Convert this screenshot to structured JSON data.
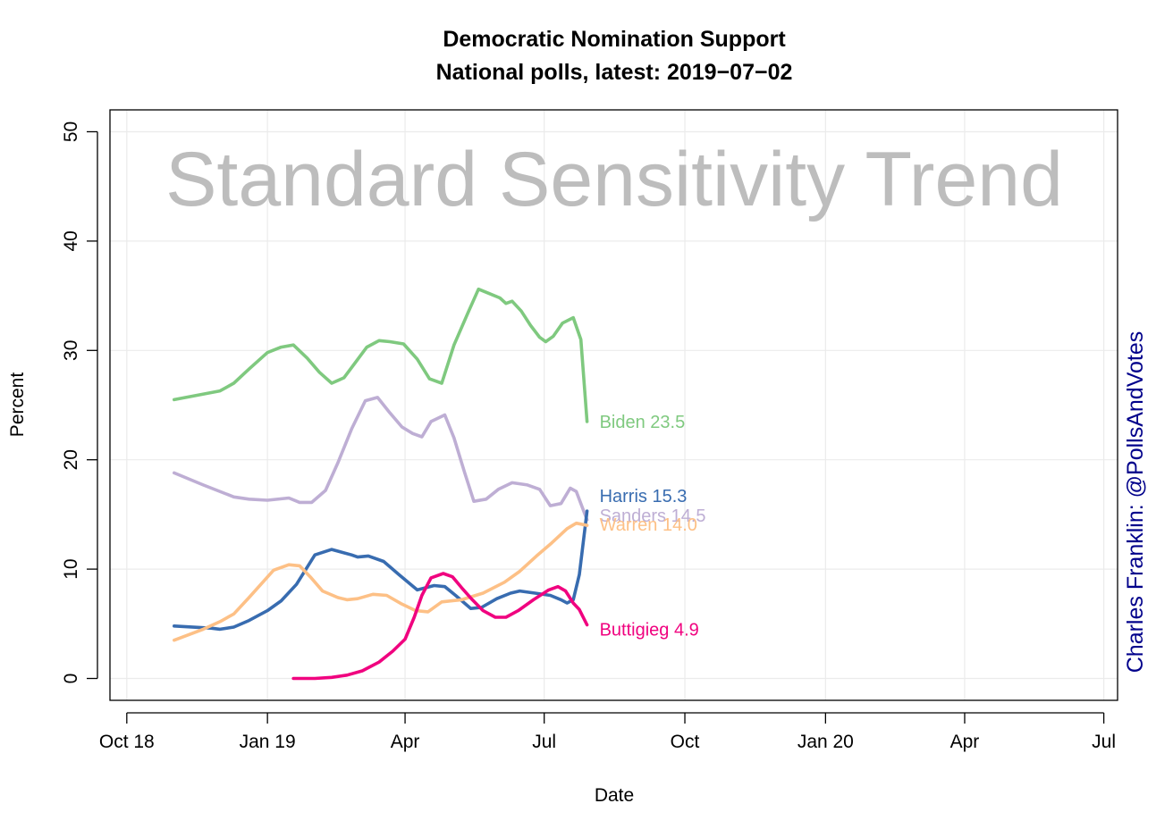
{
  "chart_data": {
    "type": "line",
    "title": "Democratic Nomination Support",
    "subtitle": "National polls, latest: 2019−07−02",
    "xlabel": "Date",
    "ylabel": "Percent",
    "watermark": "Standard Sensitivity Trend",
    "credit": "Charles Franklin: @PollsAndVotes",
    "xlim": [
      "2018-09-20",
      "2020-07-10"
    ],
    "ylim": [
      -2,
      52
    ],
    "x_ticks": [
      {
        "date": "2018-10-01",
        "label": "Oct 18"
      },
      {
        "date": "2019-01-01",
        "label": "Jan 19"
      },
      {
        "date": "2019-04-01",
        "label": "Apr"
      },
      {
        "date": "2019-07-01",
        "label": "Jul"
      },
      {
        "date": "2019-10-01",
        "label": "Oct"
      },
      {
        "date": "2020-01-01",
        "label": "Jan 20"
      },
      {
        "date": "2020-04-01",
        "label": "Apr"
      },
      {
        "date": "2020-07-01",
        "label": "Jul"
      }
    ],
    "y_ticks": [
      0,
      10,
      20,
      30,
      40,
      50
    ],
    "grid": true,
    "series": [
      {
        "name": "Biden",
        "end_label": "Biden 23.5",
        "color": "#7fc97f",
        "points": [
          [
            "2018-11-01",
            25.5
          ],
          [
            "2018-12-01",
            26.3
          ],
          [
            "2018-12-10",
            27.0
          ],
          [
            "2018-12-20",
            28.3
          ],
          [
            "2019-01-01",
            29.8
          ],
          [
            "2019-01-10",
            30.3
          ],
          [
            "2019-01-18",
            30.5
          ],
          [
            "2019-01-27",
            29.3
          ],
          [
            "2019-02-04",
            28.0
          ],
          [
            "2019-02-12",
            27.0
          ],
          [
            "2019-02-20",
            27.5
          ],
          [
            "2019-02-27",
            28.8
          ],
          [
            "2019-03-07",
            30.3
          ],
          [
            "2019-03-15",
            30.9
          ],
          [
            "2019-03-22",
            30.8
          ],
          [
            "2019-03-31",
            30.6
          ],
          [
            "2019-04-09",
            29.2
          ],
          [
            "2019-04-17",
            27.4
          ],
          [
            "2019-04-25",
            27.0
          ],
          [
            "2019-05-03",
            30.5
          ],
          [
            "2019-05-12",
            33.4
          ],
          [
            "2019-05-19",
            35.6
          ],
          [
            "2019-05-26",
            35.2
          ],
          [
            "2019-06-02",
            34.8
          ],
          [
            "2019-06-06",
            34.3
          ],
          [
            "2019-06-10",
            34.5
          ],
          [
            "2019-06-16",
            33.6
          ],
          [
            "2019-06-22",
            32.3
          ],
          [
            "2019-06-28",
            31.2
          ],
          [
            "2019-07-02",
            30.8
          ],
          [
            "2019-07-07",
            31.3
          ],
          [
            "2019-07-13",
            32.5
          ],
          [
            "2019-07-20",
            33.0
          ],
          [
            "2019-07-25",
            31.0
          ],
          [
            "2019-07-29",
            23.5
          ]
        ]
      },
      {
        "name": "Sanders",
        "end_label": "Sanders 14.5",
        "color": "#beaed4",
        "points": [
          [
            "2018-11-01",
            18.8
          ],
          [
            "2018-11-20",
            17.7
          ],
          [
            "2018-12-10",
            16.6
          ],
          [
            "2018-12-20",
            16.4
          ],
          [
            "2019-01-01",
            16.3
          ],
          [
            "2019-01-15",
            16.5
          ],
          [
            "2019-01-22",
            16.1
          ],
          [
            "2019-01-30",
            16.1
          ],
          [
            "2019-02-08",
            17.2
          ],
          [
            "2019-02-16",
            19.7
          ],
          [
            "2019-02-25",
            22.8
          ],
          [
            "2019-03-06",
            25.4
          ],
          [
            "2019-03-14",
            25.7
          ],
          [
            "2019-03-22",
            24.3
          ],
          [
            "2019-03-30",
            23.0
          ],
          [
            "2019-04-06",
            22.4
          ],
          [
            "2019-04-12",
            22.1
          ],
          [
            "2019-04-18",
            23.5
          ],
          [
            "2019-04-27",
            24.1
          ],
          [
            "2019-05-03",
            22.0
          ],
          [
            "2019-05-10",
            18.8
          ],
          [
            "2019-05-16",
            16.2
          ],
          [
            "2019-05-24",
            16.4
          ],
          [
            "2019-06-01",
            17.3
          ],
          [
            "2019-06-10",
            17.9
          ],
          [
            "2019-06-20",
            17.7
          ],
          [
            "2019-06-28",
            17.3
          ],
          [
            "2019-07-05",
            15.8
          ],
          [
            "2019-07-12",
            16.0
          ],
          [
            "2019-07-18",
            17.4
          ],
          [
            "2019-07-22",
            17.1
          ],
          [
            "2019-07-29",
            14.5
          ]
        ]
      },
      {
        "name": "Harris",
        "end_label": "Harris 15.3",
        "color": "#386cb0",
        "points": [
          [
            "2018-11-01",
            4.8
          ],
          [
            "2018-11-25",
            4.6
          ],
          [
            "2018-12-01",
            4.5
          ],
          [
            "2018-12-10",
            4.7
          ],
          [
            "2018-12-20",
            5.3
          ],
          [
            "2019-01-01",
            6.2
          ],
          [
            "2019-01-10",
            7.1
          ],
          [
            "2019-01-20",
            8.6
          ],
          [
            "2019-02-01",
            11.3
          ],
          [
            "2019-02-12",
            11.8
          ],
          [
            "2019-02-25",
            11.3
          ],
          [
            "2019-03-01",
            11.1
          ],
          [
            "2019-03-08",
            11.2
          ],
          [
            "2019-03-18",
            10.7
          ],
          [
            "2019-03-28",
            9.5
          ],
          [
            "2019-04-09",
            8.1
          ],
          [
            "2019-04-20",
            8.5
          ],
          [
            "2019-04-27",
            8.4
          ],
          [
            "2019-05-04",
            7.6
          ],
          [
            "2019-05-14",
            6.4
          ],
          [
            "2019-05-21",
            6.5
          ],
          [
            "2019-05-31",
            7.3
          ],
          [
            "2019-06-09",
            7.8
          ],
          [
            "2019-06-15",
            8.0
          ],
          [
            "2019-06-25",
            7.8
          ],
          [
            "2019-07-05",
            7.6
          ],
          [
            "2019-07-12",
            7.2
          ],
          [
            "2019-07-16",
            6.9
          ],
          [
            "2019-07-20",
            7.2
          ],
          [
            "2019-07-24",
            9.5
          ],
          [
            "2019-07-29",
            15.3
          ]
        ]
      },
      {
        "name": "Warren",
        "end_label": "Warren 14.0",
        "color": "#fdc086",
        "points": [
          [
            "2018-11-01",
            3.5
          ],
          [
            "2018-11-20",
            4.5
          ],
          [
            "2018-12-01",
            5.2
          ],
          [
            "2018-12-10",
            5.9
          ],
          [
            "2018-12-20",
            7.4
          ],
          [
            "2019-01-05",
            9.9
          ],
          [
            "2019-01-15",
            10.4
          ],
          [
            "2019-01-22",
            10.3
          ],
          [
            "2019-01-29",
            9.3
          ],
          [
            "2019-02-06",
            8.0
          ],
          [
            "2019-02-16",
            7.4
          ],
          [
            "2019-02-22",
            7.2
          ],
          [
            "2019-03-01",
            7.3
          ],
          [
            "2019-03-11",
            7.7
          ],
          [
            "2019-03-20",
            7.6
          ],
          [
            "2019-03-30",
            6.8
          ],
          [
            "2019-04-08",
            6.2
          ],
          [
            "2019-04-16",
            6.1
          ],
          [
            "2019-04-25",
            7.0
          ],
          [
            "2019-05-08",
            7.2
          ],
          [
            "2019-05-22",
            7.8
          ],
          [
            "2019-06-05",
            8.8
          ],
          [
            "2019-06-15",
            9.8
          ],
          [
            "2019-06-26",
            11.2
          ],
          [
            "2019-07-06",
            12.4
          ],
          [
            "2019-07-16",
            13.7
          ],
          [
            "2019-07-22",
            14.2
          ],
          [
            "2019-07-29",
            14.0
          ]
        ]
      },
      {
        "name": "Buttigieg",
        "end_label": "Buttigieg 4.9",
        "color": "#f0027f",
        "points": [
          [
            "2019-01-18",
            0.0
          ],
          [
            "2019-02-01",
            0.0
          ],
          [
            "2019-02-12",
            0.1
          ],
          [
            "2019-02-22",
            0.3
          ],
          [
            "2019-03-04",
            0.7
          ],
          [
            "2019-03-15",
            1.5
          ],
          [
            "2019-03-24",
            2.5
          ],
          [
            "2019-04-01",
            3.6
          ],
          [
            "2019-04-07",
            5.6
          ],
          [
            "2019-04-12",
            7.6
          ],
          [
            "2019-04-18",
            9.2
          ],
          [
            "2019-04-26",
            9.6
          ],
          [
            "2019-05-02",
            9.3
          ],
          [
            "2019-05-08",
            8.3
          ],
          [
            "2019-05-15",
            7.2
          ],
          [
            "2019-05-22",
            6.2
          ],
          [
            "2019-05-30",
            5.6
          ],
          [
            "2019-06-06",
            5.6
          ],
          [
            "2019-06-14",
            6.2
          ],
          [
            "2019-06-24",
            7.2
          ],
          [
            "2019-07-04",
            8.1
          ],
          [
            "2019-07-10",
            8.4
          ],
          [
            "2019-07-15",
            8.0
          ],
          [
            "2019-07-20",
            6.9
          ],
          [
            "2019-07-24",
            6.3
          ],
          [
            "2019-07-29",
            4.9
          ]
        ]
      }
    ]
  }
}
